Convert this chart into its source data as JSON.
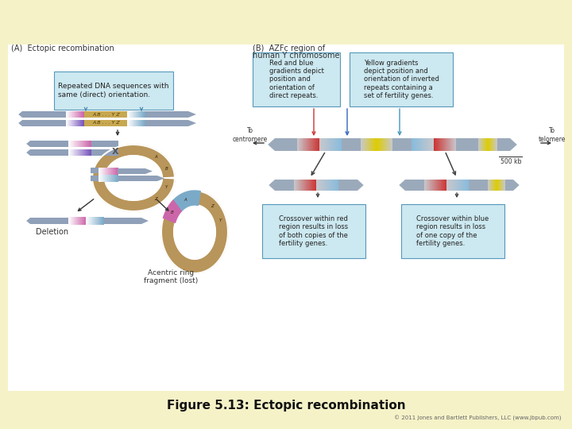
{
  "bg_color": "#f5f2c8",
  "white_box_color": "#ffffff",
  "title": "Figure 5.13: Ectopic recombination",
  "title_fontsize": 11,
  "copyright": "© 2011 Jones and Bartlett Publishers, LLC (www.jbpub.com)",
  "panel_A_label": "(A)  Ectopic recombination",
  "panel_B_label": "(B)  AZFc region of",
  "panel_B_label2": "human Y chromosome",
  "callout_box_color": "#cce8f0",
  "callout_box_edge": "#5599bb",
  "chr_color": "#b8955a",
  "chr_dark": "#a07840",
  "seg_blue": "#7baac8",
  "seg_gray": "#8fa0b8",
  "seg_gray2": "#9baabb",
  "seg_pink": "#cc66aa",
  "seg_purple": "#7755bb",
  "seg_red": "#cc3333",
  "seg_yellow": "#ddcc00",
  "seg_lightblue": "#88bbdd",
  "seg_tan": "#c8a850"
}
